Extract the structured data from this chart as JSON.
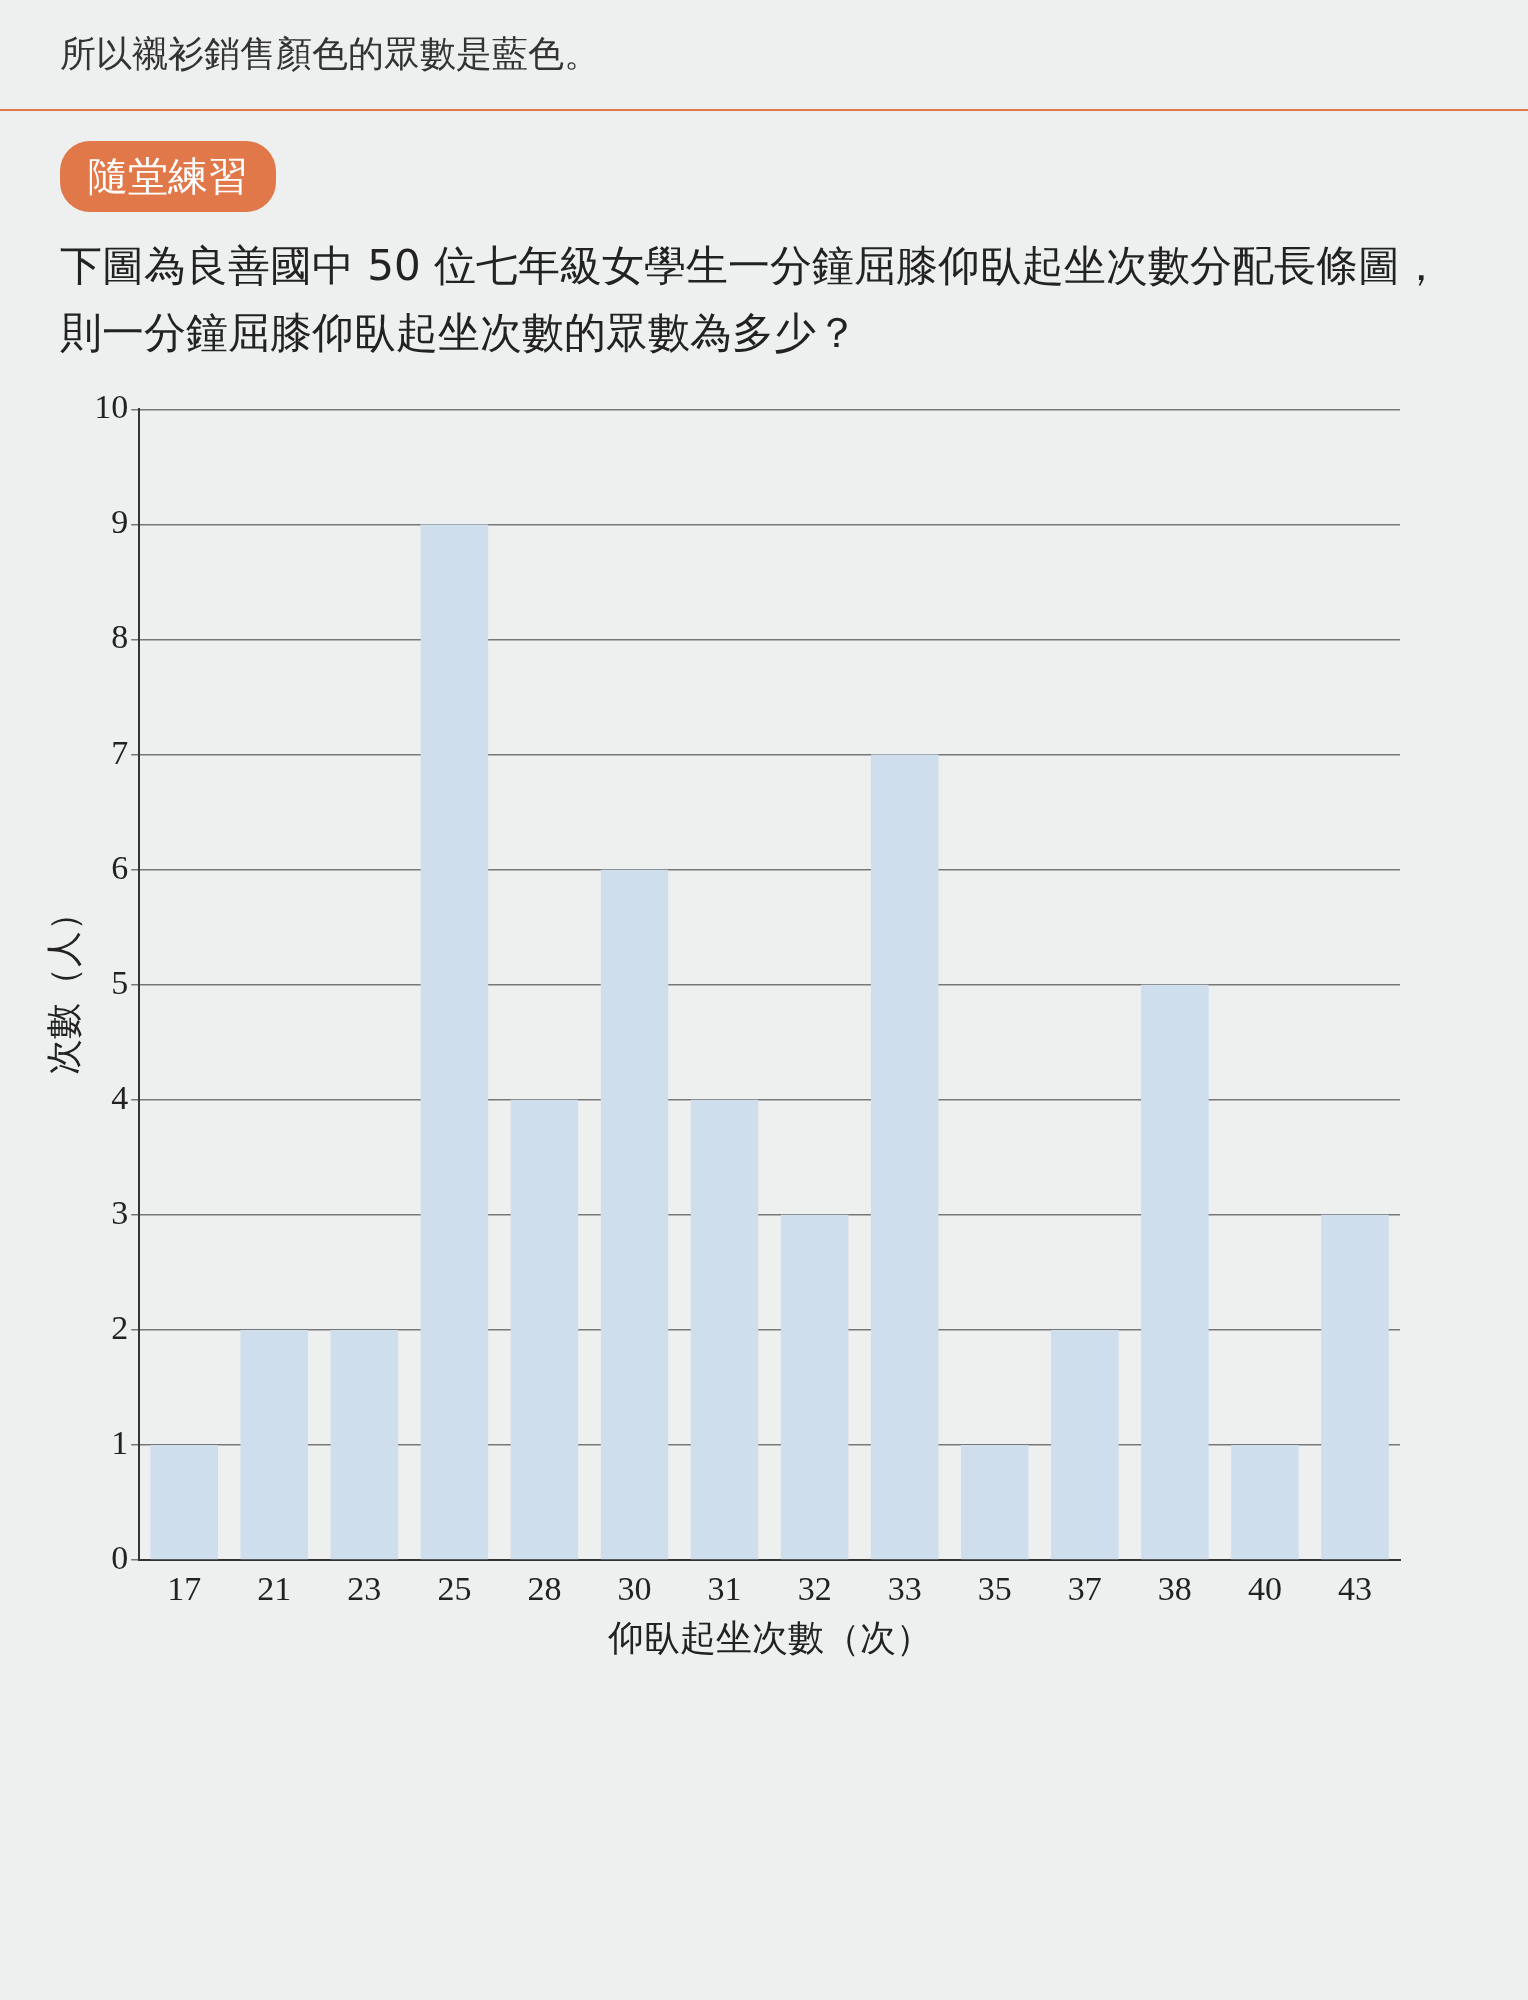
{
  "chart_data": {
    "type": "bar",
    "title": "下圖為良善國中 50 位七年級女學生一分鐘屈膝仰臥起坐次數分配長條圖，則一分鐘屈膝仰臥起坐次數的眾數為多少？",
    "subtitle": "隨堂練習",
    "annotations": [
      "所以襯衫銷售顏色的眾數是藍色。"
    ],
    "xlabel": "仰臥起坐次數（次）",
    "ylabel": "次數（人）",
    "categories": [
      "17",
      "21",
      "23",
      "25",
      "28",
      "30",
      "31",
      "32",
      "33",
      "35",
      "37",
      "38",
      "40",
      "43"
    ],
    "values": [
      1,
      2,
      2,
      9,
      4,
      6,
      4,
      3,
      7,
      1,
      2,
      5,
      1,
      3
    ],
    "color": "#cfdeec",
    "ylim": [
      0,
      10
    ],
    "yticks": [
      0,
      1,
      2,
      3,
      4,
      5,
      6,
      7,
      8,
      9,
      10
    ],
    "grid": "y",
    "legend": false
  }
}
